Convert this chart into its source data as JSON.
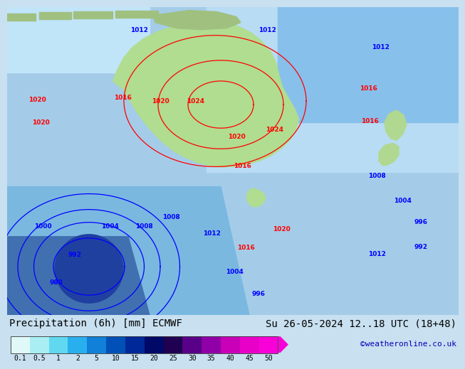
{
  "title_left": "Precipitation (6h) [mm] ECMWF",
  "title_right": "Su 26-05-2024 12..18 UTC (18+48)",
  "credit": "©weatheronline.co.uk",
  "colorbar_labels": [
    "0.1",
    "0.5",
    "1",
    "2",
    "5",
    "10",
    "15",
    "20",
    "25",
    "30",
    "35",
    "40",
    "45",
    "50"
  ],
  "colorbar_colors": [
    "#e0f8f8",
    "#a8eef2",
    "#60d8f0",
    "#28b0ee",
    "#1080d8",
    "#0050b8",
    "#002898",
    "#000868",
    "#200050",
    "#580088",
    "#9000a8",
    "#c800b8",
    "#e800c8",
    "#f800d8"
  ],
  "font_color_main": "#000000",
  "font_color_credit": "#0000bb",
  "font_size_title": 10,
  "font_size_credit": 8,
  "font_size_colorbar_labels": 7,
  "background_color": "#c8e0f0"
}
